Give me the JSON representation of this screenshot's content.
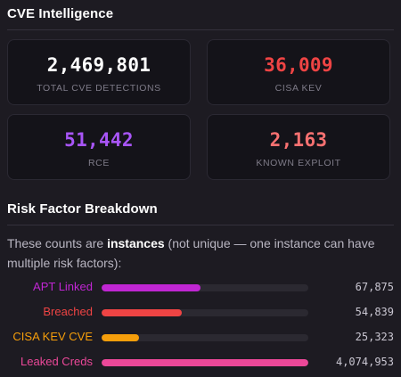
{
  "cve": {
    "title": "CVE Intelligence",
    "cards": [
      {
        "value": "2,469,801",
        "label": "TOTAL CVE DETECTIONS",
        "color": "#ffffff"
      },
      {
        "value": "36,009",
        "label": "CISA KEV",
        "color": "#ef4444"
      },
      {
        "value": "51,442",
        "label": "RCE",
        "color": "#a855f7"
      },
      {
        "value": "2,163",
        "label": "KNOWN EXPLOIT",
        "color": "#f87171"
      }
    ]
  },
  "risk": {
    "title": "Risk Factor Breakdown",
    "intro_prefix": "These counts are ",
    "intro_bold": "instances",
    "intro_suffix": " (not unique — one instance can have multiple risk factors):",
    "factors": [
      {
        "label": "APT Linked",
        "count": "67,875",
        "fraction": 0.48,
        "color": "#c026d3"
      },
      {
        "label": "Breached",
        "count": "54,839",
        "fraction": 0.39,
        "color": "#ef4444"
      },
      {
        "label": "CISA KEV CVE",
        "count": "25,323",
        "fraction": 0.18,
        "color": "#f59e0b"
      },
      {
        "label": "Leaked Creds",
        "count": "4,074,953",
        "fraction": 1.0,
        "color": "#ec4899"
      }
    ]
  }
}
